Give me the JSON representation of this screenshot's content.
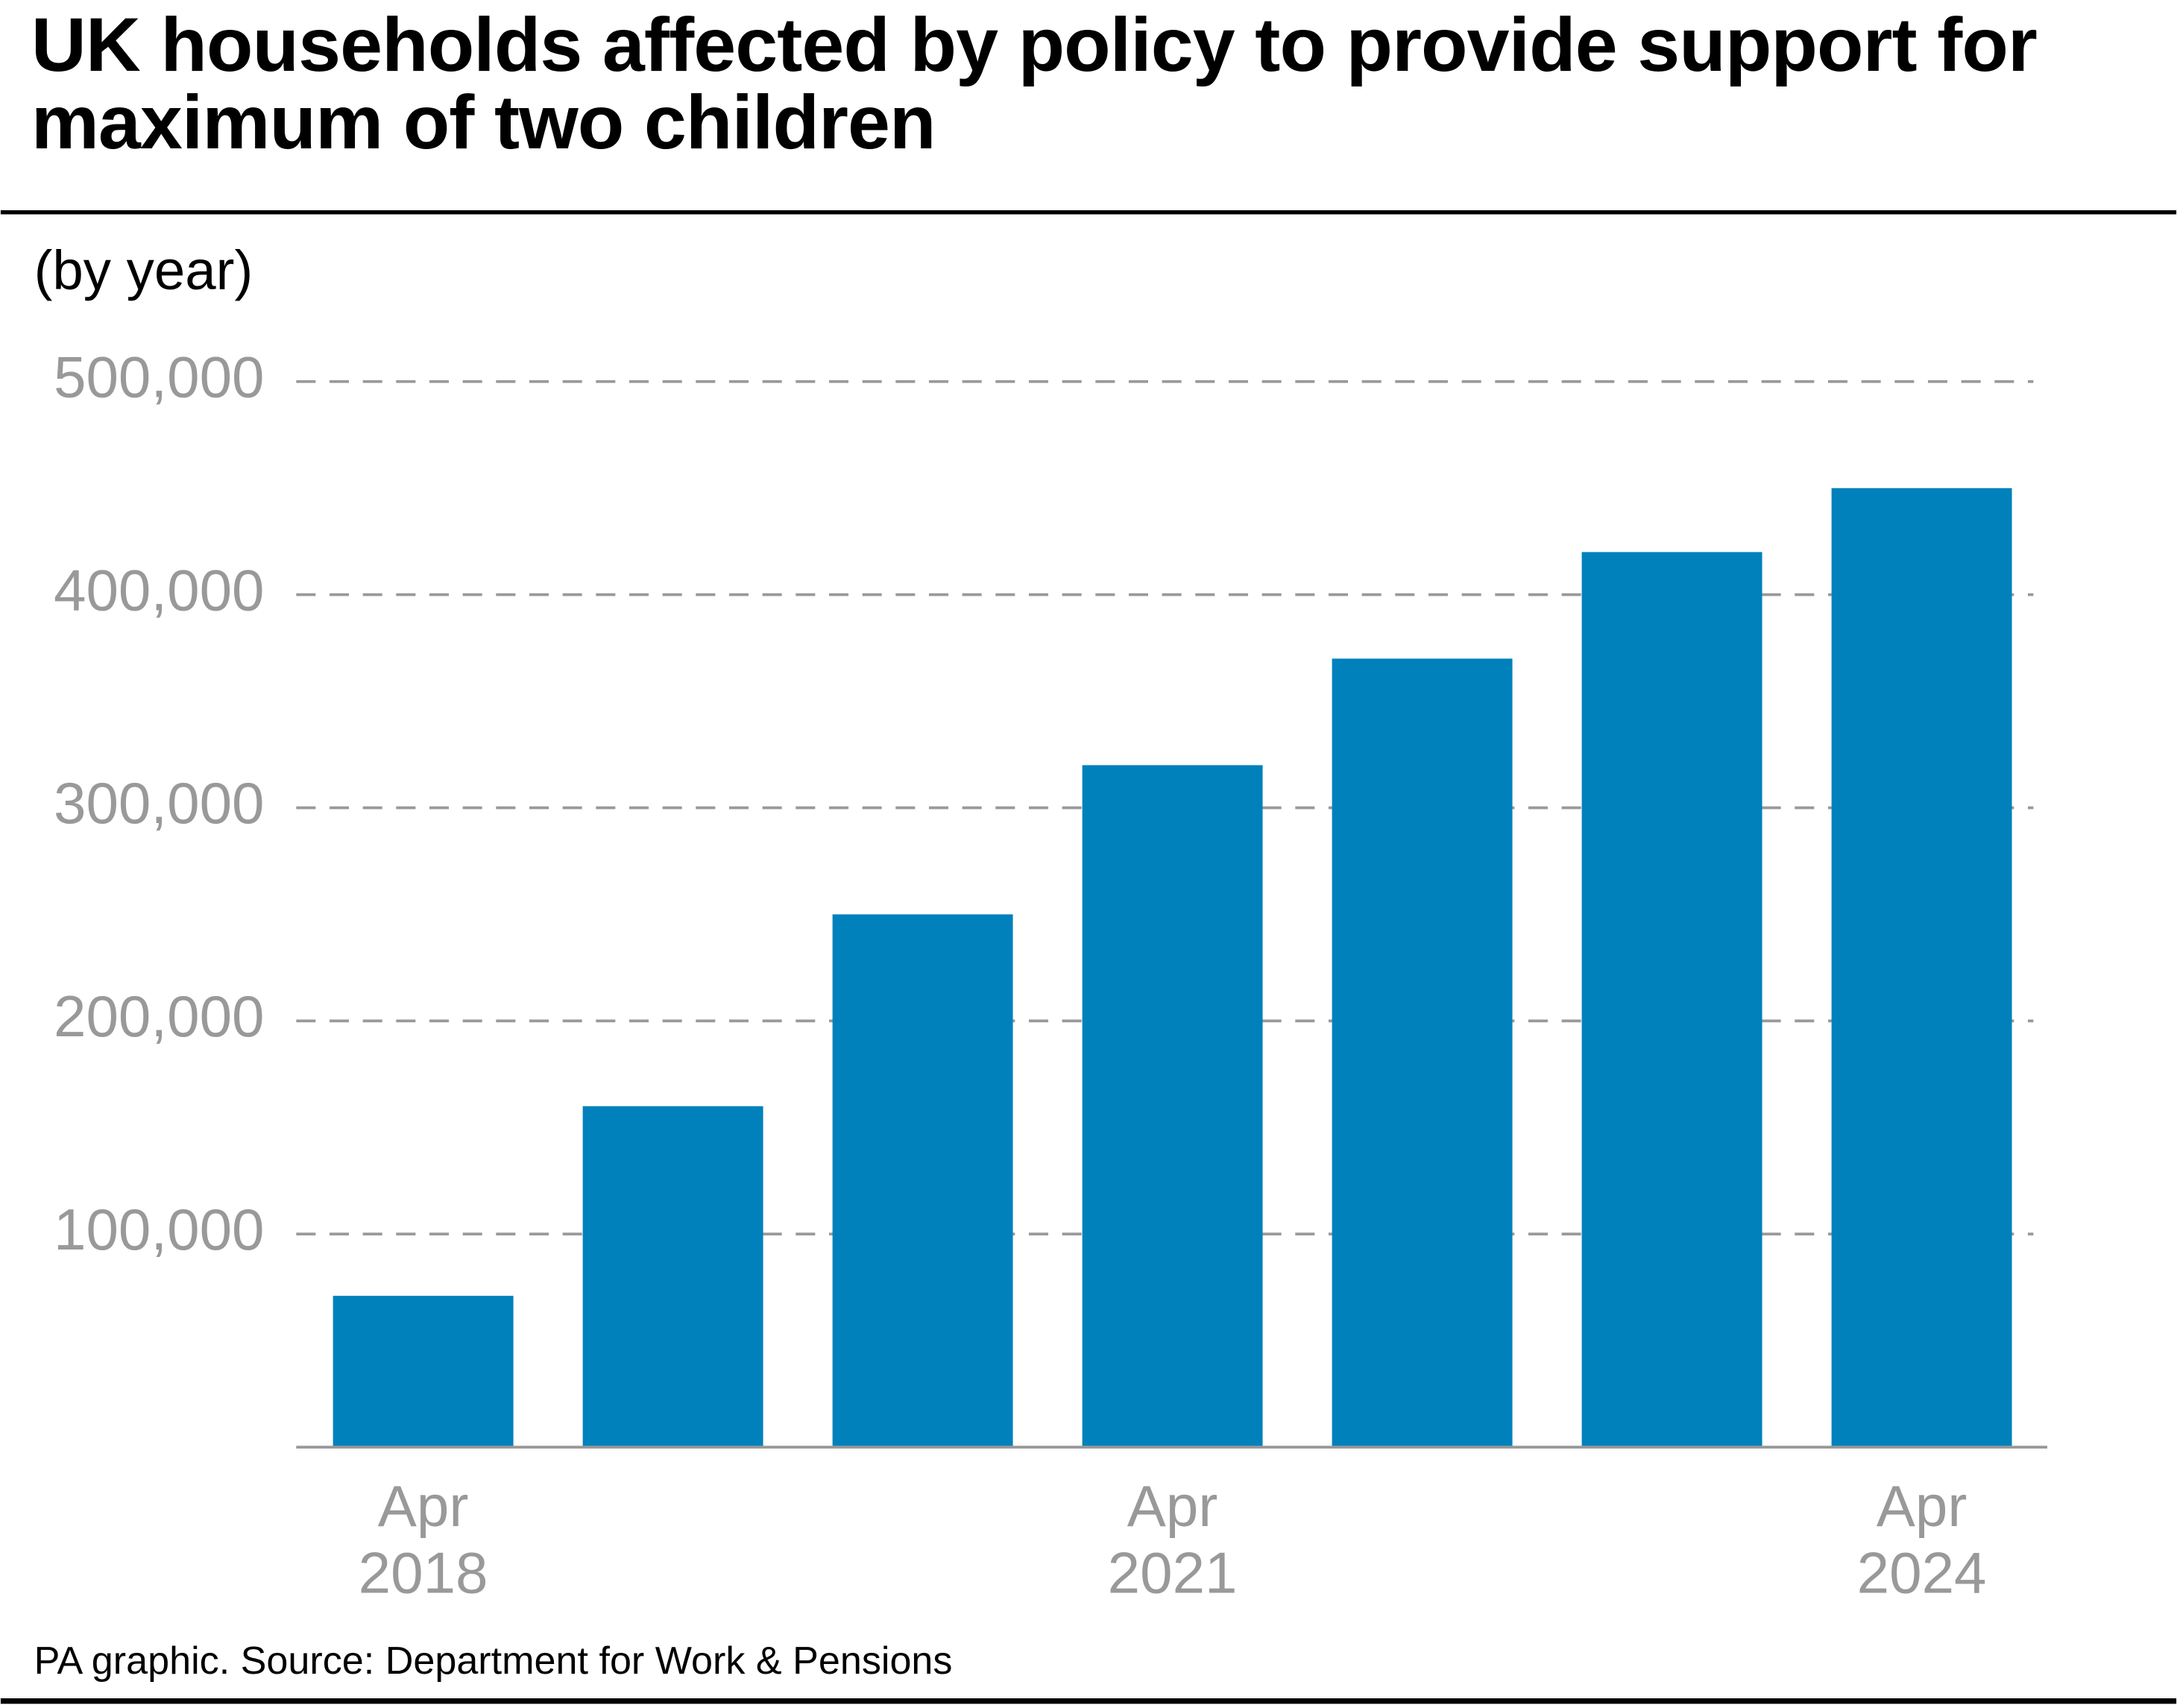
{
  "chart_data": {
    "type": "bar",
    "title": "UK households affected by policy to provide support for maximum of two children",
    "subtitle": "(by year)",
    "source": "PA graphic. Source: Department for Work & Pensions",
    "categories": [
      "Apr 2018",
      null,
      null,
      "Apr 2021",
      null,
      null,
      "Apr 2024"
    ],
    "values": [
      71000,
      160000,
      250000,
      320000,
      370000,
      420000,
      450000
    ],
    "color": "#0081bb",
    "ylim": [
      0,
      500000
    ],
    "yticks": [
      {
        "value": 100000,
        "label": "100,000"
      },
      {
        "value": 200000,
        "label": "200,000"
      },
      {
        "value": 300000,
        "label": "300,000"
      },
      {
        "value": 400000,
        "label": "400,000"
      },
      {
        "value": 500000,
        "label": "500,000"
      }
    ],
    "grid": true
  }
}
